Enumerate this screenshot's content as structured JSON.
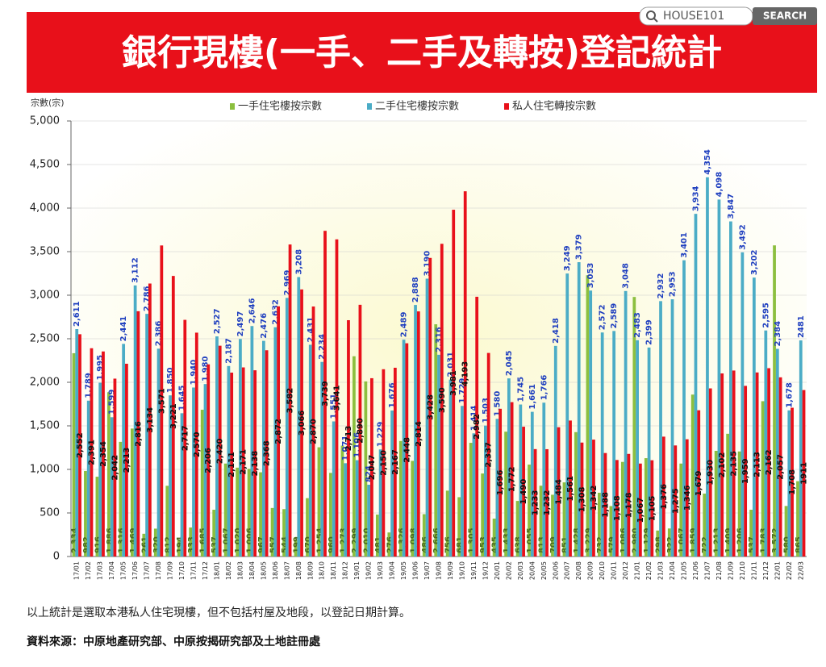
{
  "header": {
    "title": "銀行現樓(一手、二手及轉按)登記統計",
    "search_text": "HOUSE101",
    "search_button": "SEARCH"
  },
  "chart_data": {
    "type": "bar",
    "y_label": "宗數(宗)",
    "categories": [
      "17/01",
      "17/02",
      "17/03",
      "17/04",
      "17/05",
      "17/06",
      "17/07",
      "17/08",
      "17/09",
      "17/10",
      "17/11",
      "17/12",
      "18/01",
      "18/02",
      "18/03",
      "18/04",
      "18/05",
      "18/06",
      "18/07",
      "18/08",
      "18/09",
      "18/10",
      "18/11",
      "18/12",
      "19/01",
      "19/02",
      "19/03",
      "19/04",
      "19/05",
      "19/06",
      "19/07",
      "19/08",
      "19/09",
      "19/10",
      "19/11",
      "19/12",
      "20/01",
      "20/02",
      "20/03",
      "20/04",
      "20/05",
      "20/06",
      "20/07",
      "20/08",
      "20/09",
      "20/10",
      "20/11",
      "20/12",
      "21/01",
      "21/02",
      "21/03",
      "21/04",
      "21/05",
      "21/06",
      "21/07",
      "21/08",
      "21/09",
      "21/10",
      "21/11",
      "21/12",
      "22/01",
      "22/02",
      "22/03"
    ],
    "series": [
      {
        "name": "一手住宅樓按宗數",
        "color": "#8cbf3f",
        "values": [
          2334,
          982,
          916,
          1886,
          1316,
          1469,
          261,
          320,
          812,
          194,
          333,
          1685,
          537,
          1067,
          1020,
          1006,
          967,
          557,
          544,
          199,
          670,
          1254,
          960,
          1273,
          2299,
          2010,
          481,
          276,
          1326,
          1098,
          486,
          2666,
          756,
          681,
          1305,
          953,
          435,
          1433,
          638,
          1055,
          813,
          709,
          851,
          1428,
          3229,
          732,
          579,
          1086,
          2980,
          1129,
          298,
          322,
          1067,
          1859,
          722,
          1213,
          1409,
          1206,
          537,
          1783,
          3572,
          580,
          865
        ],
        "value_labels": [
          "2,334",
          "982",
          "916",
          "1,886",
          "1,316",
          "1,469",
          "261",
          "320",
          "812",
          "194",
          "333",
          "1,685",
          "537",
          "1,067",
          "1,020",
          "1,006",
          "967",
          "557",
          "544",
          "199",
          "670",
          "1,254",
          "960",
          "1,273",
          "2,299",
          "2,010",
          "481",
          "276",
          "1,326",
          "1,098",
          "486",
          "2,666",
          "756",
          "681",
          "1,305",
          "953",
          "435",
          "1,433",
          "638",
          "1,055",
          "813",
          "709",
          "851",
          "1,428",
          "3,229",
          "732",
          "579",
          "1,086",
          "2,980",
          "1,129",
          "298",
          "322",
          "1,067",
          "1,859",
          "722",
          "1,213",
          "1,409",
          "1,206",
          "537",
          "1,783",
          "3,572",
          "580",
          "865"
        ]
      },
      {
        "name": "二手住宅樓按宗數",
        "color": "#4bacc6",
        "values": [
          2611,
          1789,
          1995,
          1599,
          2441,
          3112,
          2786,
          2386,
          1850,
          1645,
          1940,
          1980,
          2527,
          2187,
          2497,
          2646,
          2476,
          2632,
          2969,
          3208,
          2431,
          2234,
          1551,
          1071,
          1106,
          824,
          1229,
          1676,
          2489,
          2888,
          3190,
          2316,
          2031,
          1729,
          1414,
          1503,
          1580,
          2045,
          1745,
          1661,
          1766,
          2418,
          3249,
          3379,
          3053,
          2572,
          2589,
          3048,
          2483,
          2399,
          2932,
          2953,
          3401,
          3934,
          4354,
          4098,
          3847,
          3492,
          3202,
          2595,
          2384,
          1678,
          2481
        ],
        "value_labels": [
          "2,611",
          "1,789",
          "1,995",
          "1,599",
          "2,441",
          "3,112",
          "2,786",
          "2,386",
          "1,850",
          "1,645",
          "1,940",
          "1,980",
          "2,527",
          "2,187",
          "2,497",
          "2,646",
          "2,476",
          "2,632",
          "2,969",
          "3,208",
          "2,431",
          "2,234",
          "1,551",
          "1,071",
          "1,106",
          "824",
          "1,229",
          "1,676",
          "2,489",
          "2,888",
          "3,190",
          "2,316",
          "2,031",
          "1,729",
          "1,414",
          "1,503",
          "1,580",
          "2,045",
          "1,745",
          "1,661",
          "1,766",
          "2,418",
          "3,249",
          "3,379",
          "3,053",
          "2,572",
          "2,589",
          "3,048",
          "2,483",
          "2,399",
          "2,932",
          "2,953",
          "3,401",
          "3,934",
          "4,354",
          "4,098",
          "3,847",
          "3,492",
          "3,202",
          "2,595",
          "2,384",
          "1,678",
          "2481"
        ]
      },
      {
        "name": "私人住宅轉按宗數",
        "color": "#e8101a",
        "values": [
          2552,
          2391,
          2354,
          2042,
          2213,
          2816,
          3134,
          3571,
          3221,
          2717,
          2570,
          2206,
          2420,
          2111,
          2171,
          2138,
          2368,
          2872,
          3582,
          3066,
          2870,
          3739,
          3641,
          2713,
          2890,
          2047,
          2150,
          2167,
          2448,
          2814,
          3428,
          3590,
          3981,
          4193,
          2982,
          2337,
          1696,
          1772,
          1490,
          1233,
          1232,
          1484,
          1561,
          1308,
          1342,
          1188,
          1108,
          1178,
          1067,
          1105,
          1376,
          1275,
          1346,
          1679,
          1930,
          2102,
          2135,
          1959,
          2113,
          2162,
          2057,
          1708,
          1911
        ],
        "value_labels": [
          "2,552",
          "2,391",
          "2,354",
          "2,042",
          "2,213",
          "2,816",
          "3,134",
          "3,571",
          "3,221",
          "2,717",
          "2,570",
          "2,206",
          "2,420",
          "2,111",
          "2,171",
          "2,138",
          "2,368",
          "2,872",
          "3,582",
          "3,066",
          "2,870",
          "3,739",
          "3,641",
          "2,713",
          "2,890",
          "2,047",
          "2,150",
          "2,167",
          "2,448",
          "2,814",
          "3,428",
          "3,590",
          "3,981",
          "4,193",
          "2,982",
          "2,337",
          "1,696",
          "1,772",
          "1,490",
          "1,233",
          "1,232",
          "1,484",
          "1,561",
          "1,308",
          "1,342",
          "1,188",
          "1,108",
          "1,178",
          "1,067",
          "1,105",
          "1,376",
          "1,275",
          "1,346",
          "1,679",
          "1,930",
          "2,102",
          "2,135",
          "1,959",
          "2,113",
          "2,162",
          "2,057",
          "1,708",
          "1911"
        ]
      }
    ],
    "ylim": [
      0,
      5000
    ],
    "yticks": [
      0,
      500,
      {
        "value": 1000,
        "label": "1,000"
      },
      {
        "value": 1500,
        "label": "1,500"
      },
      {
        "value": 2000,
        "label": "2,000"
      },
      {
        "value": 2500,
        "label": "2,500"
      },
      {
        "value": 3000,
        "label": "3,000"
      },
      {
        "value": 3500,
        "label": "3,500"
      },
      {
        "value": 4000,
        "label": "4,000"
      },
      {
        "value": 4500,
        "label": "4,500"
      },
      {
        "value": 5000,
        "label": "5,000"
      }
    ],
    "grid": true,
    "legend": "top"
  },
  "footer": {
    "note": "以上統計是選取本港私人住宅現樓，但不包括村屋及地段，以登記日期計算。",
    "source": "資料來源：中原地產研究部、中原按揭研究部及土地註冊處"
  }
}
